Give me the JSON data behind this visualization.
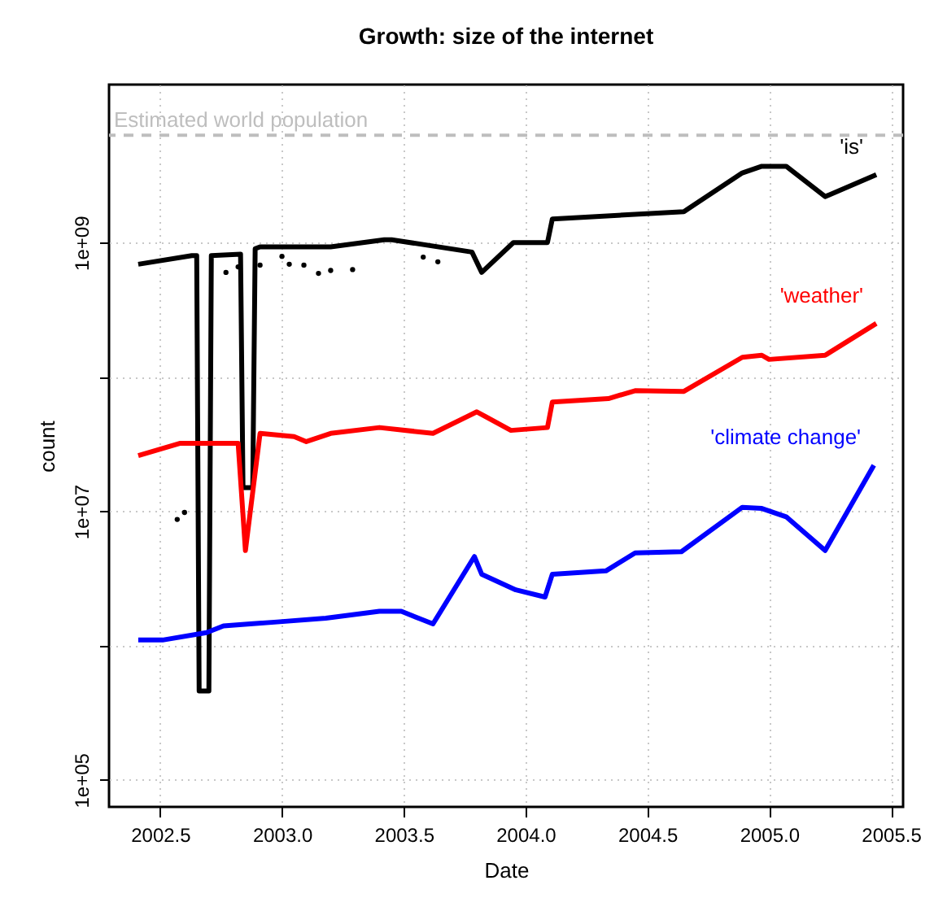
{
  "chart_data": {
    "type": "line",
    "title": "Growth: size of the internet",
    "xlabel": "Date",
    "ylabel": "count",
    "log": "y",
    "grid": true,
    "xlim": [
      2002.29,
      2005.55
    ],
    "xticks": [
      2002.5,
      {
        "value": 2003,
        "label": "2003.0"
      },
      2003.5,
      {
        "value": 2004,
        "label": "2004.0"
      },
      2004.5,
      {
        "value": 2005,
        "label": "2005.0"
      },
      2005.5
    ],
    "ylim": [
      63000,
      15000000000
    ],
    "yticks": [
      {
        "value": 100000,
        "label": "1e+05"
      },
      {
        "value": 1000000,
        "label": null
      },
      {
        "value": 10000000,
        "label": "1e+07"
      },
      {
        "value": 100000000,
        "label": null
      },
      {
        "value": 1000000000,
        "label": "1e+09"
      }
    ],
    "ref_lines": [
      {
        "axis": "y",
        "value": 6300000000,
        "label": "Estimated world population",
        "color": "#bebebe",
        "line_style": "dashed"
      }
    ],
    "series": [
      {
        "name": "'is'",
        "color": "#000000",
        "x": [
          2002.41,
          2002.63,
          2002.65,
          2002.66,
          2002.7,
          2002.71,
          2002.83,
          2002.84,
          2002.88,
          2002.89,
          2002.91,
          2003.2,
          2003.42,
          2003.45,
          2003.78,
          2003.82,
          2003.95,
          2004.09,
          2004.11,
          2004.65,
          2004.89,
          2004.97,
          2005.07,
          2005.23,
          2005.44
        ],
        "values": [
          690000000,
          800000000,
          800000000,
          460000,
          460000,
          800000000,
          820000000,
          15000000,
          15000000,
          900000000,
          930000000,
          930000000,
          1050000000,
          1050000000,
          850000000,
          600000000,
          1000000000,
          1000000000,
          1500000000,
          1700000000,
          3300000000,
          3700000000,
          3700000000,
          2200000000,
          3200000000
        ]
      },
      {
        "type": "scatter",
        "color": "#000000",
        "x": [
          2002.57,
          2002.6,
          2002.77,
          2002.82,
          2002.91,
          2003.0,
          2003.03,
          2003.09,
          2003.15,
          2003.2,
          2003.29,
          2003.58,
          2003.64
        ],
        "values": [
          8700000,
          9800000,
          600000000,
          660000000,
          680000000,
          790000000,
          690000000,
          680000000,
          590000000,
          620000000,
          630000000,
          780000000,
          720000000
        ]
      },
      {
        "name": "'weather'",
        "color": "#ff0000",
        "x": [
          2002.41,
          2002.58,
          2002.82,
          2002.85,
          2002.91,
          2003.05,
          2003.1,
          2003.2,
          2003.4,
          2003.62,
          2003.8,
          2003.94,
          2004.09,
          2004.11,
          2004.34,
          2004.45,
          2004.65,
          2004.89,
          2004.97,
          2005.0,
          2005.23,
          2005.44
        ],
        "values": [
          26000000,
          32000000,
          32000000,
          5100000,
          38000000,
          36000000,
          33000000,
          38000000,
          42000000,
          38000000,
          55000000,
          40000000,
          42000000,
          65000000,
          69000000,
          79000000,
          78000000,
          140000000,
          145000000,
          135000000,
          145000000,
          250000000
        ]
      },
      {
        "name": "'climate change'",
        "color": "#0000ff",
        "x": [
          2002.41,
          2002.51,
          2002.69,
          2002.76,
          2002.87,
          2002.98,
          2003.18,
          2003.4,
          2003.49,
          2003.62,
          2003.79,
          2003.82,
          2003.96,
          2004.08,
          2004.11,
          2004.33,
          2004.45,
          2004.64,
          2004.89,
          2004.97,
          2005.07,
          2005.23,
          2005.43
        ],
        "values": [
          1100000,
          1100000,
          1250000,
          1400000,
          1450000,
          1500000,
          1600000,
          1800000,
          1800000,
          1450000,
          4600000,
          3400000,
          2600000,
          2300000,
          3400000,
          3600000,
          4900000,
          5000000,
          10700000,
          10500000,
          9100000,
          5100000,
          22000000
        ]
      }
    ]
  }
}
